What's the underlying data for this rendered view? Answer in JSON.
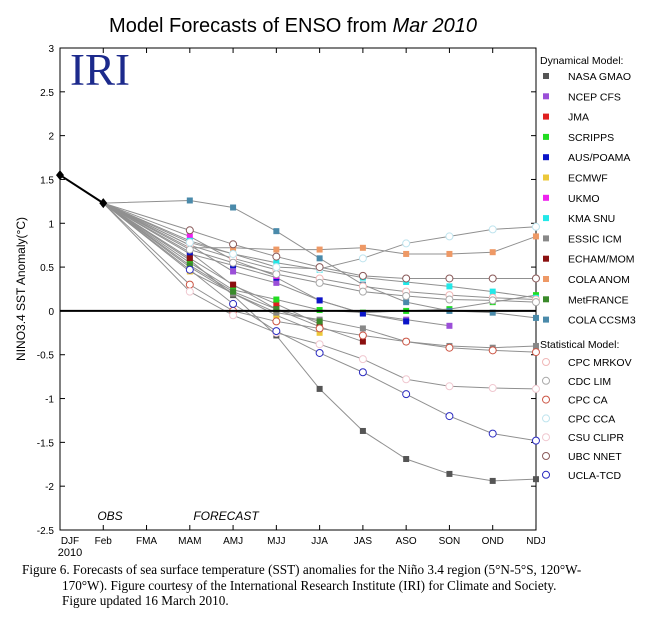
{
  "chart_data": {
    "type": "line",
    "title_prefix": "Model Forecasts of ENSO from ",
    "title_italic": "Mar 2010",
    "logo_text": "IRI",
    "ylabel": "NINO3.4 SST Anomaly(°C)",
    "ylim": [
      -2.5,
      3
    ],
    "yticks": [
      "3",
      "2.5",
      "2",
      "1.5",
      "1",
      "0.5",
      "0",
      "-0.5",
      "-1",
      "-1.5",
      "-2",
      "-2.5"
    ],
    "categories": [
      "DJF",
      "Feb",
      "FMA",
      "MAM",
      "AMJ",
      "MJJ",
      "JJA",
      "JAS",
      "ASO",
      "SON",
      "OND",
      "NDJ"
    ],
    "year_label": "2010",
    "obs_label": "OBS",
    "forecast_label": "FORECAST",
    "observed": [
      1.55,
      1.23
    ],
    "dynamical_header": "Dynamical Model:",
    "statistical_header": "Statistical Model:",
    "series": [
      {
        "name": "NASA GMAO",
        "group": "dynamical",
        "color": "#555555",
        "values": [
          null,
          1.23,
          null,
          0.58,
          0.18,
          -0.28,
          -0.89,
          -1.37,
          -1.69,
          -1.86,
          -1.94,
          -1.92
        ]
      },
      {
        "name": "NCEP CFS",
        "group": "dynamical",
        "color": "#9b4fd8",
        "values": [
          null,
          1.23,
          null,
          0.75,
          0.45,
          0.32,
          0.12,
          -0.03,
          -0.1,
          -0.17,
          null,
          null
        ]
      },
      {
        "name": "JMA",
        "group": "dynamical",
        "color": "#e02020",
        "values": [
          null,
          1.23,
          null,
          0.67,
          0.29,
          0.08,
          -0.15,
          null,
          null,
          null,
          null,
          null
        ]
      },
      {
        "name": "SCRIPPS",
        "group": "dynamical",
        "color": "#22dd22",
        "values": [
          null,
          1.23,
          null,
          0.55,
          0.24,
          0.13,
          0.01,
          -0.02,
          0.0,
          0.02,
          0.1,
          0.18
        ]
      },
      {
        "name": "AUS/POAMA",
        "group": "dynamical",
        "color": "#0a14c8",
        "values": [
          null,
          1.23,
          null,
          0.65,
          0.52,
          0.38,
          0.12,
          -0.03,
          -0.12,
          null,
          null,
          null
        ]
      },
      {
        "name": "ECMWF",
        "group": "dynamical",
        "color": "#ecc83a",
        "values": [
          null,
          1.23,
          null,
          0.45,
          0.2,
          -0.05,
          -0.25,
          null,
          null,
          null,
          null,
          null
        ]
      },
      {
        "name": "UKMO",
        "group": "dynamical",
        "color": "#ee22ee",
        "values": [
          null,
          1.23,
          null,
          0.85,
          0.58,
          0.4,
          null,
          null,
          null,
          null,
          null,
          null
        ]
      },
      {
        "name": "KMA SNU",
        "group": "dynamical",
        "color": "#22e8e8",
        "values": [
          null,
          1.23,
          null,
          0.8,
          0.65,
          0.55,
          0.47,
          0.38,
          0.33,
          0.28,
          0.22,
          0.15
        ]
      },
      {
        "name": "ESSIC ICM",
        "group": "dynamical",
        "color": "#888888",
        "values": [
          null,
          1.23,
          null,
          0.5,
          0.2,
          -0.02,
          -0.1,
          -0.2,
          -0.35,
          -0.4,
          -0.42,
          -0.4
        ]
      },
      {
        "name": "ECHAM/MOM",
        "group": "dynamical",
        "color": "#8b1010",
        "values": [
          null,
          1.23,
          null,
          0.6,
          0.3,
          0.02,
          -0.18,
          -0.35,
          null,
          null,
          null,
          null
        ]
      },
      {
        "name": "COLA ANOM",
        "group": "dynamical",
        "color": "#ee9966",
        "values": [
          null,
          1.23,
          null,
          0.72,
          0.72,
          0.7,
          0.7,
          0.72,
          0.65,
          0.65,
          0.67,
          0.85
        ]
      },
      {
        "name": "MetFRANCE",
        "group": "dynamical",
        "color": "#3a8a2a",
        "values": [
          null,
          1.23,
          null,
          0.52,
          0.22,
          0.02,
          -0.12,
          null,
          null,
          null,
          null,
          null
        ]
      },
      {
        "name": "COLA CCSM3",
        "group": "dynamical",
        "color": "#4a8aaa",
        "values": [
          null,
          1.23,
          null,
          1.26,
          1.18,
          0.91,
          0.6,
          0.3,
          0.1,
          0.0,
          -0.02,
          -0.08
        ]
      },
      {
        "name": "CPC MRKOV",
        "group": "statistical",
        "color": "#f0b8b8",
        "values": [
          null,
          1.23,
          null,
          0.75,
          0.6,
          0.47,
          0.37,
          0.28,
          0.22,
          0.18,
          0.15,
          0.13
        ]
      },
      {
        "name": "CDC LIM",
        "group": "statistical",
        "color": "#aaaaaa",
        "values": [
          null,
          1.23,
          null,
          0.7,
          0.55,
          0.42,
          0.32,
          0.22,
          0.17,
          0.13,
          0.12,
          0.1
        ]
      },
      {
        "name": "CPC CA",
        "group": "statistical",
        "color": "#cc5544",
        "values": [
          null,
          1.23,
          null,
          0.3,
          0.0,
          -0.12,
          -0.2,
          -0.28,
          -0.35,
          -0.42,
          -0.45,
          -0.47
        ]
      },
      {
        "name": "CPC CCA",
        "group": "statistical",
        "color": "#bfe4ee",
        "values": [
          null,
          1.23,
          null,
          0.78,
          0.65,
          0.5,
          0.48,
          0.6,
          0.77,
          0.85,
          0.93,
          0.96
        ]
      },
      {
        "name": "CSU CLIPR",
        "group": "statistical",
        "color": "#f0c8d0",
        "values": [
          null,
          1.23,
          null,
          0.22,
          -0.05,
          -0.25,
          -0.38,
          -0.55,
          -0.78,
          -0.86,
          -0.88,
          -0.89
        ]
      },
      {
        "name": "UBC NNET",
        "group": "statistical",
        "color": "#8a5a5a",
        "values": [
          null,
          1.23,
          null,
          0.92,
          0.76,
          0.62,
          0.5,
          0.4,
          0.37,
          0.37,
          0.37,
          0.37
        ]
      },
      {
        "name": "UCLA-TCD",
        "group": "statistical",
        "color": "#2a2ac0",
        "values": [
          null,
          1.23,
          null,
          0.47,
          0.08,
          -0.23,
          -0.48,
          -0.7,
          -0.95,
          -1.2,
          -1.4,
          -1.48
        ]
      }
    ]
  },
  "caption": {
    "line1": "Figure 6. Forecasts of sea surface temperature (SST) anomalies for the Niño 3.4 region (5°N-5°S, 120°W-",
    "line2": "170°W).  Figure courtesy of the International Research Institute (IRI) for Climate and Society.",
    "line3": "Figure updated 16 March 2010."
  }
}
